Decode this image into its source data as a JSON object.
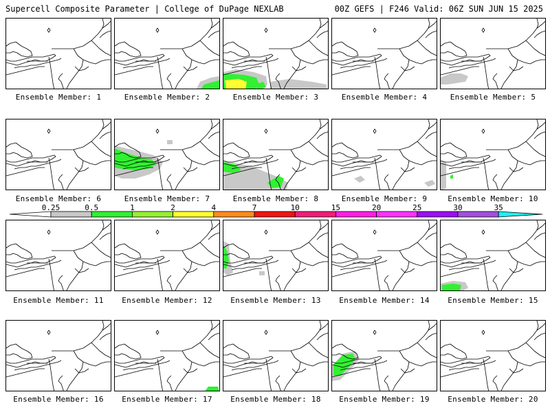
{
  "header": {
    "title_left": "Supercell Composite Parameter | College of DuPage NEXLAB",
    "title_right": "00Z GEFS | F246 Valid: 06Z SUN JUN 15 2025"
  },
  "member_label_prefix": "Ensemble Member: ",
  "members": [
    {
      "number": "1",
      "shading": []
    },
    {
      "number": "2",
      "shading": [
        {
          "level": "0.25-0.5",
          "region": "bottom-right"
        },
        {
          "level": "0.5-1",
          "region": "bottom-right"
        }
      ]
    },
    {
      "number": "3",
      "shading": [
        {
          "level": "0.25-0.5",
          "region": "bottom-left"
        },
        {
          "level": "0.5-1",
          "region": "bottom-left"
        },
        {
          "level": "2-4",
          "region": "bottom-left"
        },
        {
          "level": "0.25-0.5",
          "region": "bottom-center"
        }
      ]
    },
    {
      "number": "4",
      "shading": []
    },
    {
      "number": "5",
      "shading": [
        {
          "level": "0.25-0.5",
          "region": "lower-left"
        }
      ]
    },
    {
      "number": "6",
      "shading": []
    },
    {
      "number": "7",
      "shading": [
        {
          "level": "0.25-0.5",
          "region": "lower-left"
        },
        {
          "level": "0.5-1",
          "region": "lower-left"
        }
      ]
    },
    {
      "number": "8",
      "shading": [
        {
          "level": "0.25-0.5",
          "region": "bottom"
        },
        {
          "level": "0.5-1",
          "region": "bottom"
        }
      ]
    },
    {
      "number": "9",
      "shading": [
        {
          "level": "0.25-0.5",
          "region": "scattered"
        }
      ]
    },
    {
      "number": "10",
      "shading": [
        {
          "level": "0.25-0.5",
          "region": "left-edge"
        },
        {
          "level": "0.5-1",
          "region": "left-edge"
        }
      ]
    },
    {
      "number": "11",
      "shading": []
    },
    {
      "number": "12",
      "shading": []
    },
    {
      "number": "13",
      "shading": [
        {
          "level": "0.25-0.5",
          "region": "left-edge"
        },
        {
          "level": "0.5-1",
          "region": "left-edge"
        }
      ]
    },
    {
      "number": "14",
      "shading": []
    },
    {
      "number": "15",
      "shading": [
        {
          "level": "0.25-0.5",
          "region": "bottom-left"
        },
        {
          "level": "0.5-1",
          "region": "bottom-left"
        }
      ]
    },
    {
      "number": "16",
      "shading": []
    },
    {
      "number": "17",
      "shading": [
        {
          "level": "0.5-1",
          "region": "bottom-right"
        }
      ]
    },
    {
      "number": "18",
      "shading": []
    },
    {
      "number": "19",
      "shading": [
        {
          "level": "0.25-0.5",
          "region": "lower-left"
        },
        {
          "level": "0.5-1",
          "region": "lower-left"
        }
      ]
    },
    {
      "number": "20",
      "shading": []
    }
  ],
  "colorbar": {
    "ticks": [
      "0.25",
      "0.5",
      "1",
      "2",
      "4",
      "7",
      "10",
      "15",
      "20",
      "25",
      "30",
      "35"
    ],
    "colors": [
      "#c8c8c8",
      "#32f032",
      "#96f032",
      "#ffff32",
      "#ff8c1e",
      "#f01414",
      "#f01e78",
      "#ff1ee6",
      "#ff32ff",
      "#9b0ff0",
      "#a050dc",
      "#1ef0f0"
    ]
  },
  "colors": {
    "gray": "#c8c8c8",
    "green": "#32f032",
    "yellow": "#ffff32"
  }
}
